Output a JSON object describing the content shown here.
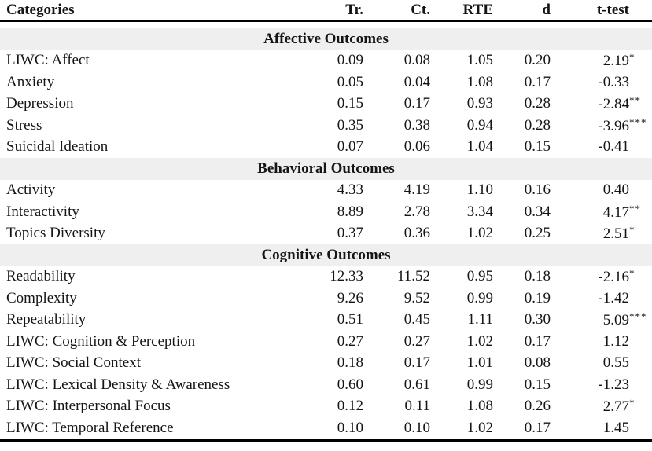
{
  "style": {
    "section_band_color": "#efefef",
    "rule_color": "#000000",
    "text_color": "#151515",
    "background": "#ffffff"
  },
  "table": {
    "headers": [
      "Categories",
      "Tr.",
      "Ct.",
      "RTE",
      "d",
      "t-test"
    ],
    "sections": [
      {
        "title": "Affective Outcomes",
        "rows": [
          {
            "category": "LIWC: Affect",
            "tr": "0.09",
            "ct": "0.08",
            "rte": "1.05",
            "d": "0.20",
            "t": "2.19",
            "stars": "*"
          },
          {
            "category": "Anxiety",
            "tr": "0.05",
            "ct": "0.04",
            "rte": "1.08",
            "d": "0.17",
            "t": "-0.33",
            "stars": ""
          },
          {
            "category": "Depression",
            "tr": "0.15",
            "ct": "0.17",
            "rte": "0.93",
            "d": "0.28",
            "t": "-2.84",
            "stars": "**"
          },
          {
            "category": "Stress",
            "tr": "0.35",
            "ct": "0.38",
            "rte": "0.94",
            "d": "0.28",
            "t": "-3.96",
            "stars": "***"
          },
          {
            "category": "Suicidal Ideation",
            "tr": "0.07",
            "ct": "0.06",
            "rte": "1.04",
            "d": "0.15",
            "t": "-0.41",
            "stars": ""
          }
        ]
      },
      {
        "title": "Behavioral Outcomes",
        "rows": [
          {
            "category": "Activity",
            "tr": "4.33",
            "ct": "4.19",
            "rte": "1.10",
            "d": "0.16",
            "t": "0.40",
            "stars": ""
          },
          {
            "category": "Interactivity",
            "tr": "8.89",
            "ct": "2.78",
            "rte": "3.34",
            "d": "0.34",
            "t": "4.17",
            "stars": "**"
          },
          {
            "category": "Topics Diversity",
            "tr": "0.37",
            "ct": "0.36",
            "rte": "1.02",
            "d": "0.25",
            "t": "2.51",
            "stars": "*"
          }
        ]
      },
      {
        "title": "Cognitive Outcomes",
        "rows": [
          {
            "category": "Readability",
            "tr": "12.33",
            "ct": "11.52",
            "rte": "0.95",
            "d": "0.18",
            "t": "-2.16",
            "stars": "*"
          },
          {
            "category": "Complexity",
            "tr": "9.26",
            "ct": "9.52",
            "rte": "0.99",
            "d": "0.19",
            "t": "-1.42",
            "stars": ""
          },
          {
            "category": "Repeatability",
            "tr": "0.51",
            "ct": "0.45",
            "rte": "1.11",
            "d": "0.30",
            "t": "5.09",
            "stars": "***"
          },
          {
            "category": "LIWC: Cognition & Perception",
            "tr": "0.27",
            "ct": "0.27",
            "rte": "1.02",
            "d": "0.17",
            "t": "1.12",
            "stars": ""
          },
          {
            "category": "LIWC: Social Context",
            "tr": "0.18",
            "ct": "0.17",
            "rte": "1.01",
            "d": "0.08",
            "t": "0.55",
            "stars": ""
          },
          {
            "category": "LIWC: Lexical Density & Awareness",
            "tr": "0.60",
            "ct": "0.61",
            "rte": "0.99",
            "d": "0.15",
            "t": "-1.23",
            "stars": ""
          },
          {
            "category": "LIWC: Interpersonal Focus",
            "tr": "0.12",
            "ct": "0.11",
            "rte": "1.08",
            "d": "0.26",
            "t": "2.77",
            "stars": "*"
          },
          {
            "category": "LIWC: Temporal Reference",
            "tr": "0.10",
            "ct": "0.10",
            "rte": "1.02",
            "d": "0.17",
            "t": "1.45",
            "stars": ""
          }
        ]
      }
    ]
  },
  "chart_data": {
    "type": "table",
    "title": "",
    "columns": [
      "Categories",
      "Tr.",
      "Ct.",
      "RTE",
      "d",
      "t-test"
    ],
    "groups": [
      {
        "group": "Affective Outcomes",
        "rows": [
          [
            "LIWC: Affect",
            0.09,
            0.08,
            1.05,
            0.2,
            "2.19*"
          ],
          [
            "Anxiety",
            0.05,
            0.04,
            1.08,
            0.17,
            "-0.33"
          ],
          [
            "Depression",
            0.15,
            0.17,
            0.93,
            0.28,
            "-2.84**"
          ],
          [
            "Stress",
            0.35,
            0.38,
            0.94,
            0.28,
            "-3.96***"
          ],
          [
            "Suicidal Ideation",
            0.07,
            0.06,
            1.04,
            0.15,
            "-0.41"
          ]
        ]
      },
      {
        "group": "Behavioral Outcomes",
        "rows": [
          [
            "Activity",
            4.33,
            4.19,
            1.1,
            0.16,
            "0.40"
          ],
          [
            "Interactivity",
            8.89,
            2.78,
            3.34,
            0.34,
            "4.17**"
          ],
          [
            "Topics Diversity",
            0.37,
            0.36,
            1.02,
            0.25,
            "2.51*"
          ]
        ]
      },
      {
        "group": "Cognitive Outcomes",
        "rows": [
          [
            "Readability",
            12.33,
            11.52,
            0.95,
            0.18,
            "-2.16*"
          ],
          [
            "Complexity",
            9.26,
            9.52,
            0.99,
            0.19,
            "-1.42"
          ],
          [
            "Repeatability",
            0.51,
            0.45,
            1.11,
            0.3,
            "5.09***"
          ],
          [
            "LIWC: Cognition & Perception",
            0.27,
            0.27,
            1.02,
            0.17,
            "1.12"
          ],
          [
            "LIWC: Social Context",
            0.18,
            0.17,
            1.01,
            0.08,
            "0.55"
          ],
          [
            "LIWC: Lexical Density & Awareness",
            0.6,
            0.61,
            0.99,
            0.15,
            "-1.23"
          ],
          [
            "LIWC: Interpersonal Focus",
            0.12,
            0.11,
            1.08,
            0.26,
            "2.77*"
          ],
          [
            "LIWC: Temporal Reference",
            0.1,
            0.1,
            1.02,
            0.17,
            "1.45"
          ]
        ]
      }
    ]
  }
}
